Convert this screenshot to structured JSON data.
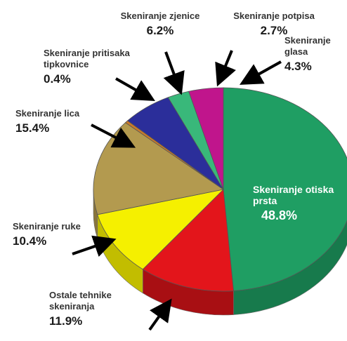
{
  "chart_data": {
    "type": "pie",
    "title": "",
    "slices": [
      {
        "label_lines": [
          "Skeniranje otiska",
          "prsta"
        ],
        "value": 48.8,
        "pct_text": "48.8%",
        "color": "#1f9e63",
        "side": "#177a4c"
      },
      {
        "label_lines": [
          "Ostale tehnike",
          "skeniranja"
        ],
        "value": 11.9,
        "pct_text": "11.9%",
        "color": "#e3151b",
        "side": "#a80f13"
      },
      {
        "label_lines": [
          "Skeniranje ruke"
        ],
        "value": 10.4,
        "pct_text": "10.4%",
        "color": "#f5f000",
        "side": "#c2bd00"
      },
      {
        "label_lines": [
          "Skeniranje lica"
        ],
        "value": 15.4,
        "pct_text": "15.4%",
        "color": "#b39a4f",
        "side": "#8a763b"
      },
      {
        "label_lines": [
          "Skeniranje pritisaka",
          "tipkovnice"
        ],
        "value": 0.4,
        "pct_text": "0.4%",
        "color": "#c97a2a",
        "side": "#9a5c1f"
      },
      {
        "label_lines": [
          "Skeniranje zjenice"
        ],
        "value": 6.2,
        "pct_text": "6.2%",
        "color": "#2b2e9a",
        "side": "#1f2170"
      },
      {
        "label_lines": [
          "Skeniranje potpisa"
        ],
        "value": 2.7,
        "pct_text": "2.7%",
        "color": "#39b87a",
        "side": "#2a8a5b"
      },
      {
        "label_lines": [
          "Skeniranje",
          "glasa"
        ],
        "value": 4.3,
        "pct_text": "4.3%",
        "color": "#c0158c",
        "side": "#8f1068"
      }
    ]
  }
}
